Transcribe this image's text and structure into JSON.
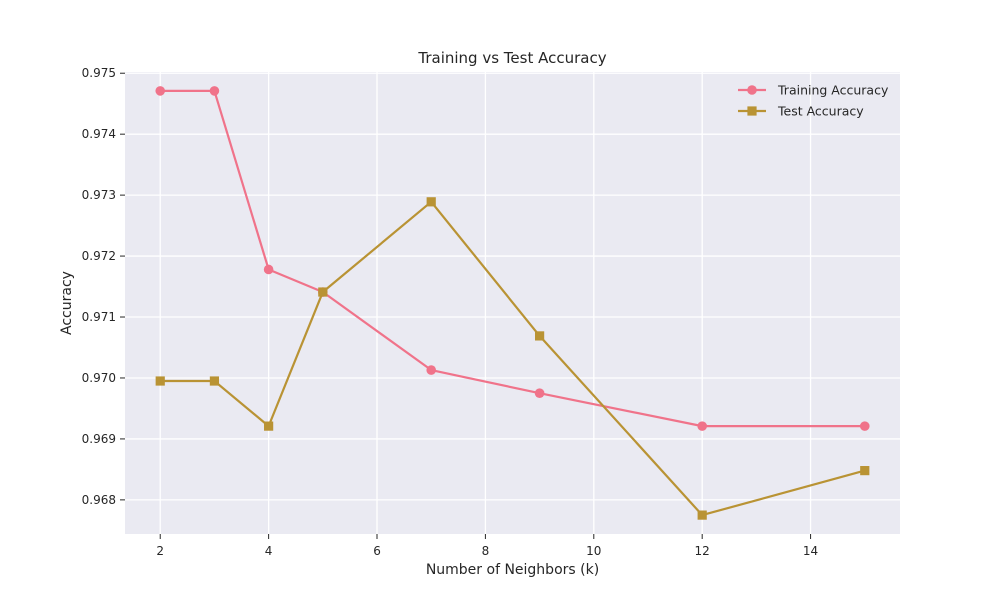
{
  "chart_data": {
    "type": "line",
    "title": "Training vs Test Accuracy",
    "xlabel": "Number of Neighbors (k)",
    "ylabel": "Accuracy",
    "xlim": [
      1.35,
      15.65
    ],
    "ylim": [
      0.96744,
      0.97502
    ],
    "xticks": [
      2,
      4,
      6,
      8,
      10,
      12,
      14
    ],
    "yticks": [
      0.968,
      0.969,
      0.97,
      0.971,
      0.972,
      0.973,
      0.974,
      0.975
    ],
    "ytick_labels": [
      "0.968",
      "0.969",
      "0.970",
      "0.971",
      "0.972",
      "0.973",
      "0.974",
      "0.975"
    ],
    "grid": true,
    "legend_position": "top-right",
    "x": [
      2,
      3,
      4,
      5,
      7,
      9,
      12,
      15
    ],
    "series": [
      {
        "name": "Training Accuracy",
        "marker": "circle",
        "color": "#f0738a",
        "values": [
          0.97471,
          0.97471,
          0.97178,
          0.97141,
          0.97013,
          0.96975,
          0.96921,
          0.96921
        ]
      },
      {
        "name": "Test Accuracy",
        "marker": "square",
        "color": "#b99334",
        "values": [
          0.96995,
          0.96995,
          0.96921,
          0.97141,
          0.97289,
          0.97069,
          0.96775,
          0.96848
        ]
      }
    ],
    "style": {
      "plot_background": "#eaeaf2",
      "grid_color": "#ffffff",
      "text_color": "#262626"
    }
  }
}
